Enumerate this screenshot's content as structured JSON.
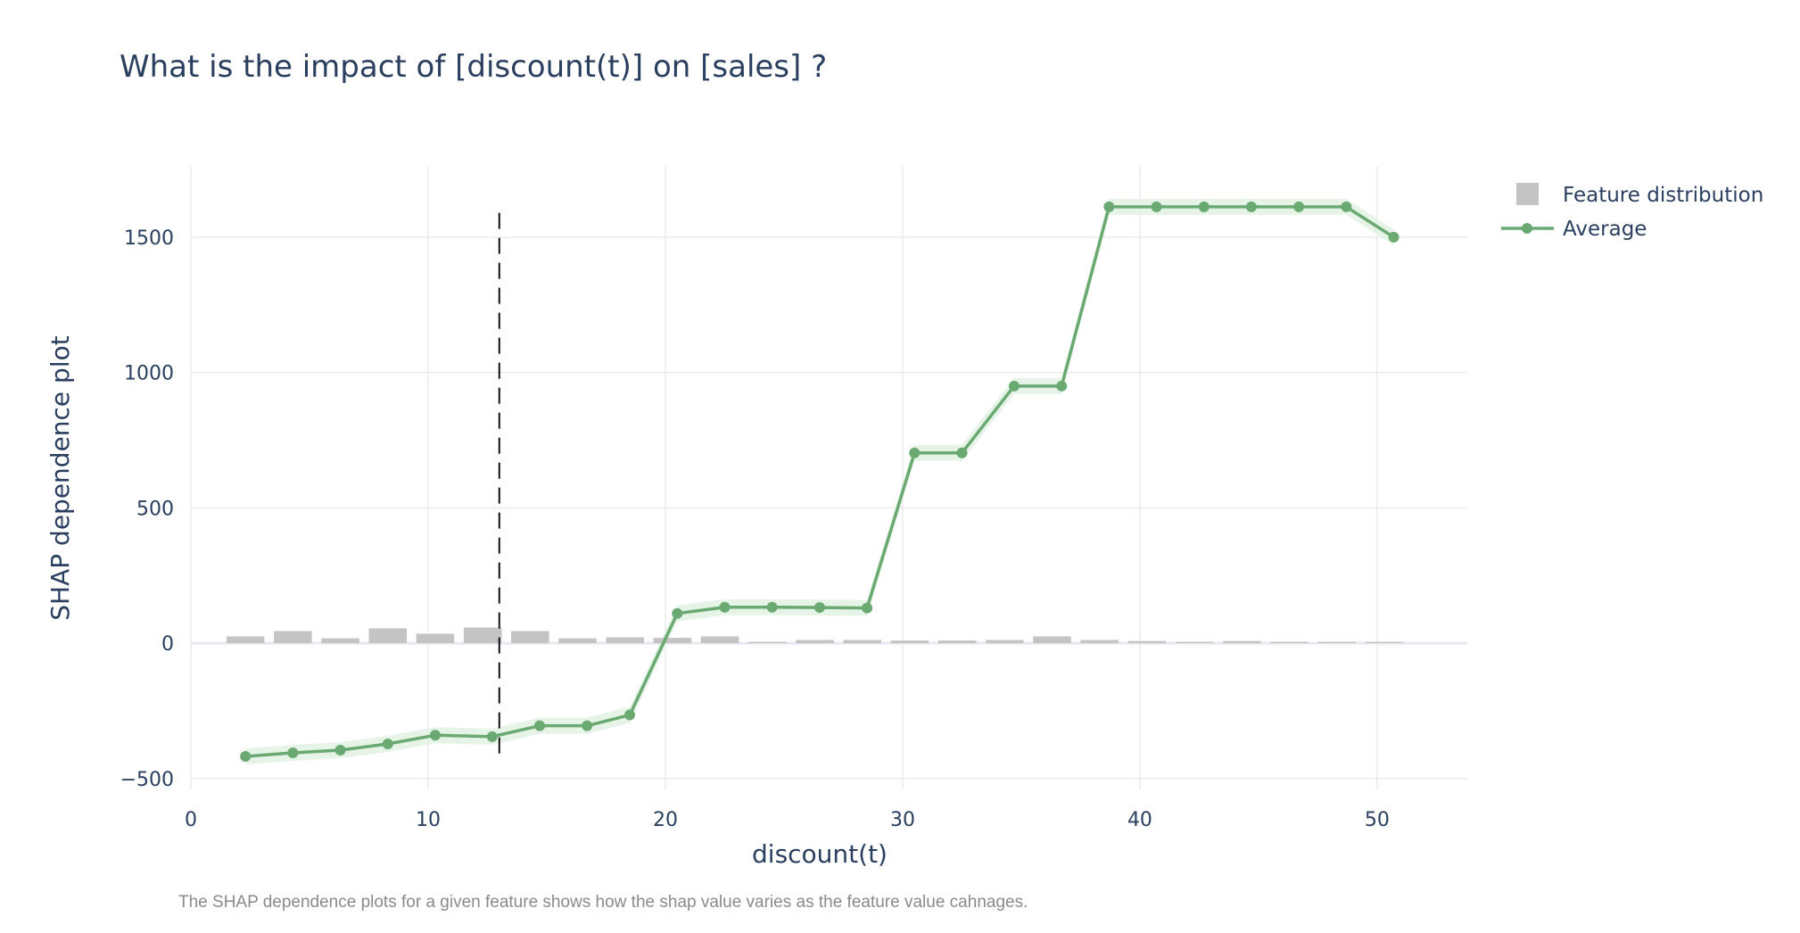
{
  "chart_data": {
    "type": "line",
    "title": "What is the impact of [discount(t)] on [sales] ?",
    "xlabel": "discount(t)",
    "ylabel": "SHAP dependence plot",
    "caption": "The SHAP dependence plots for a given feature shows how the shap value varies as the feature value cahnages.",
    "xlim": [
      0,
      53.8
    ],
    "ylim": [
      -540,
      1760
    ],
    "x_ticks": [
      0,
      10,
      20,
      30,
      40,
      50
    ],
    "y_ticks": [
      -500,
      0,
      500,
      1000,
      1500
    ],
    "x_tick_labels": [
      "0",
      "10",
      "20",
      "30",
      "40",
      "50"
    ],
    "y_tick_labels": [
      "−500",
      "0",
      "500",
      "1000",
      "1500"
    ],
    "grid": true,
    "legend_position": "top-right",
    "reference_line_x": 13,
    "series": [
      {
        "name": "Feature distribution",
        "type": "bar",
        "color": "#c4c4c4",
        "x": [
          2.3,
          4.3,
          6.3,
          8.3,
          10.3,
          12.3,
          14.3,
          16.3,
          18.3,
          20.3,
          22.3,
          24.3,
          26.3,
          28.3,
          30.3,
          32.3,
          34.3,
          36.3,
          38.3,
          40.3,
          42.3,
          44.3,
          46.3,
          48.3,
          50.3
        ],
        "values": [
          25,
          45,
          18,
          55,
          35,
          58,
          45,
          18,
          22,
          20,
          25,
          5,
          12,
          12,
          10,
          10,
          12,
          25,
          12,
          8,
          5,
          8,
          5,
          5,
          5
        ]
      },
      {
        "name": "Average",
        "type": "line",
        "color": "#6aaa72",
        "x": [
          2.3,
          4.3,
          6.3,
          8.3,
          10.3,
          12.7,
          14.7,
          16.7,
          18.5,
          20.5,
          22.5,
          24.5,
          26.5,
          28.5,
          30.5,
          32.5,
          34.7,
          36.7,
          38.7,
          40.7,
          42.7,
          44.7,
          46.7,
          48.7,
          50.7
        ],
        "values": [
          -418,
          -405,
          -395,
          -372,
          -340,
          -345,
          -305,
          -305,
          -265,
          110,
          133,
          133,
          132,
          130,
          703,
          703,
          950,
          950,
          1612,
          1612,
          1612,
          1612,
          1612,
          1612,
          1500
        ]
      }
    ]
  }
}
